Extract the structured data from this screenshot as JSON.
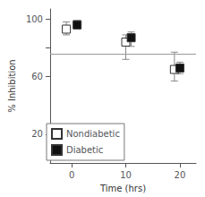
{
  "chart_data": {
    "type": "scatter",
    "xlabel": "Time (hrs)",
    "ylabel": "% Inhibition",
    "xlim": [
      -4,
      23
    ],
    "xticks": [
      0,
      10,
      20
    ],
    "ylim": [
      0,
      107
    ],
    "yticks": [
      20,
      60,
      {
        "value": 80,
        "label": ""
      },
      100
    ],
    "hline_y": 76,
    "grid": false,
    "legend": "lower left",
    "series": [
      {
        "name": "Nondiabetic",
        "color": "#ffffff",
        "marker": "square",
        "x": [
          -1,
          10,
          19
        ],
        "values": [
          93,
          84,
          65
        ],
        "yerr_low": [
          4,
          12,
          8
        ],
        "yerr_high": [
          5,
          5,
          12
        ]
      },
      {
        "name": "Diabetic",
        "color": "#111111",
        "marker": "square",
        "x": [
          1,
          11,
          20
        ],
        "values": [
          96,
          87,
          66
        ],
        "yerr_low": [
          3,
          6,
          4
        ],
        "yerr_high": [
          3,
          4,
          4
        ]
      }
    ]
  }
}
